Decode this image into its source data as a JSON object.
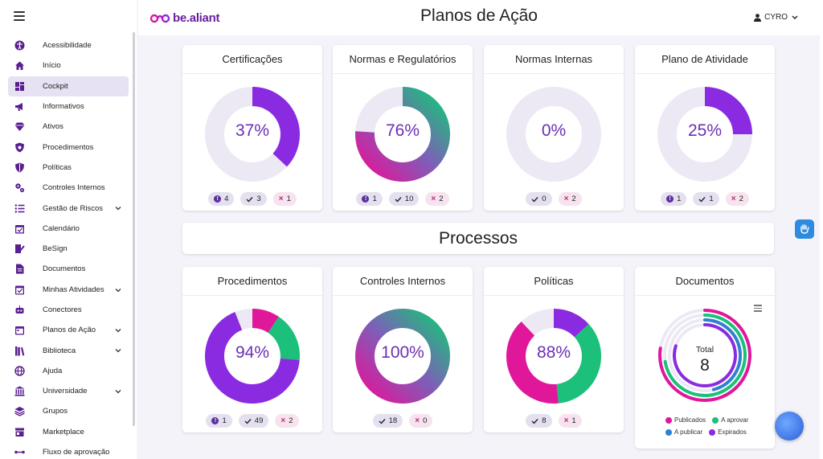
{
  "header": {
    "brand": "be.aliant",
    "title": "Planos de Ação",
    "user": "CYRO"
  },
  "sidebar": {
    "items": [
      {
        "label": "Acessibilidade",
        "icon": "accessibility-icon"
      },
      {
        "label": "Início",
        "icon": "home-icon"
      },
      {
        "label": "Cockpit",
        "icon": "dashboard-icon",
        "active": true
      },
      {
        "label": "Informativos",
        "icon": "megaphone-icon"
      },
      {
        "label": "Ativos",
        "icon": "diamond-icon"
      },
      {
        "label": "Procedimentos",
        "icon": "shield-star-icon"
      },
      {
        "label": "Políticas",
        "icon": "shield-icon"
      },
      {
        "label": "Controles Internos",
        "icon": "gears-icon"
      },
      {
        "label": "Gestão de Riscos",
        "icon": "list-icon",
        "expandable": true
      },
      {
        "label": "Calendário",
        "icon": "calendar-check-icon"
      },
      {
        "label": "BeSign",
        "icon": "signature-icon"
      },
      {
        "label": "Documentos",
        "icon": "document-icon"
      },
      {
        "label": "Minhas Atividades",
        "icon": "checkbox-icon",
        "expandable": true
      },
      {
        "label": "Conectores",
        "icon": "robot-icon"
      },
      {
        "label": "Planos de Ação",
        "icon": "calendar-icon",
        "expandable": true
      },
      {
        "label": "Biblioteca",
        "icon": "books-icon",
        "expandable": true
      },
      {
        "label": "Ajuda",
        "icon": "globe-icon"
      },
      {
        "label": "Universidade",
        "icon": "university-icon",
        "expandable": true
      },
      {
        "label": "Grupos",
        "icon": "layers-icon"
      },
      {
        "label": "Marketplace",
        "icon": "store-icon"
      },
      {
        "label": "Fluxo de aprovação",
        "icon": "flow-icon"
      }
    ]
  },
  "colors": {
    "purple": "#8a2be2",
    "pink": "#e0179b",
    "green": "#1cc07a",
    "blue": "#2f80d0",
    "track": "#ece9f4",
    "accent_text": "#6b2fb4"
  },
  "section2_title": "Processos",
  "cards_top": [
    {
      "title": "Certificações",
      "percent": "37%",
      "fraction": 0.37,
      "style": "purple",
      "badges": [
        {
          "type": "info",
          "value": "4"
        },
        {
          "type": "ok",
          "value": "3"
        },
        {
          "type": "x",
          "value": "1"
        }
      ]
    },
    {
      "title": "Normas e Regulatórios",
      "percent": "76%",
      "fraction": 0.76,
      "style": "gradient",
      "badges": [
        {
          "type": "info",
          "value": "1"
        },
        {
          "type": "ok",
          "value": "10"
        },
        {
          "type": "x",
          "value": "2"
        }
      ]
    },
    {
      "title": "Normas Internas",
      "percent": "0%",
      "fraction": 0,
      "style": "purple",
      "badges": [
        {
          "type": "ok",
          "value": "0"
        },
        {
          "type": "x",
          "value": "2"
        }
      ]
    },
    {
      "title": "Plano de Atividade",
      "percent": "25%",
      "fraction": 0.25,
      "style": "purple",
      "badges": [
        {
          "type": "info",
          "value": "1"
        },
        {
          "type": "ok",
          "value": "1"
        },
        {
          "type": "x",
          "value": "2"
        }
      ]
    }
  ],
  "cards_bottom": [
    {
      "title": "Procedimentos",
      "percent": "94%",
      "fraction": 0.94,
      "style": "purple_tip",
      "badges": [
        {
          "type": "info",
          "value": "1"
        },
        {
          "type": "ok",
          "value": "49"
        },
        {
          "type": "x",
          "value": "2"
        }
      ]
    },
    {
      "title": "Controles Internos",
      "percent": "100%",
      "fraction": 1,
      "style": "gradient",
      "badges": [
        {
          "type": "ok",
          "value": "18"
        },
        {
          "type": "x",
          "value": "0"
        }
      ]
    },
    {
      "title": "Políticas",
      "percent": "88%",
      "fraction": 0.88,
      "style": "gradient_purple",
      "badges": [
        {
          "type": "ok",
          "value": "8"
        },
        {
          "type": "x",
          "value": "1"
        }
      ]
    }
  ],
  "documents": {
    "title": "Documentos",
    "total_label": "Total",
    "total_value": "8",
    "legend": [
      {
        "label": "Publicados",
        "color": "#e0179b"
      },
      {
        "label": "A aprovar",
        "color": "#1cc07a"
      },
      {
        "label": "A publicar",
        "color": "#2f80d0"
      },
      {
        "label": "Expirados",
        "color": "#8a2be2"
      }
    ]
  }
}
